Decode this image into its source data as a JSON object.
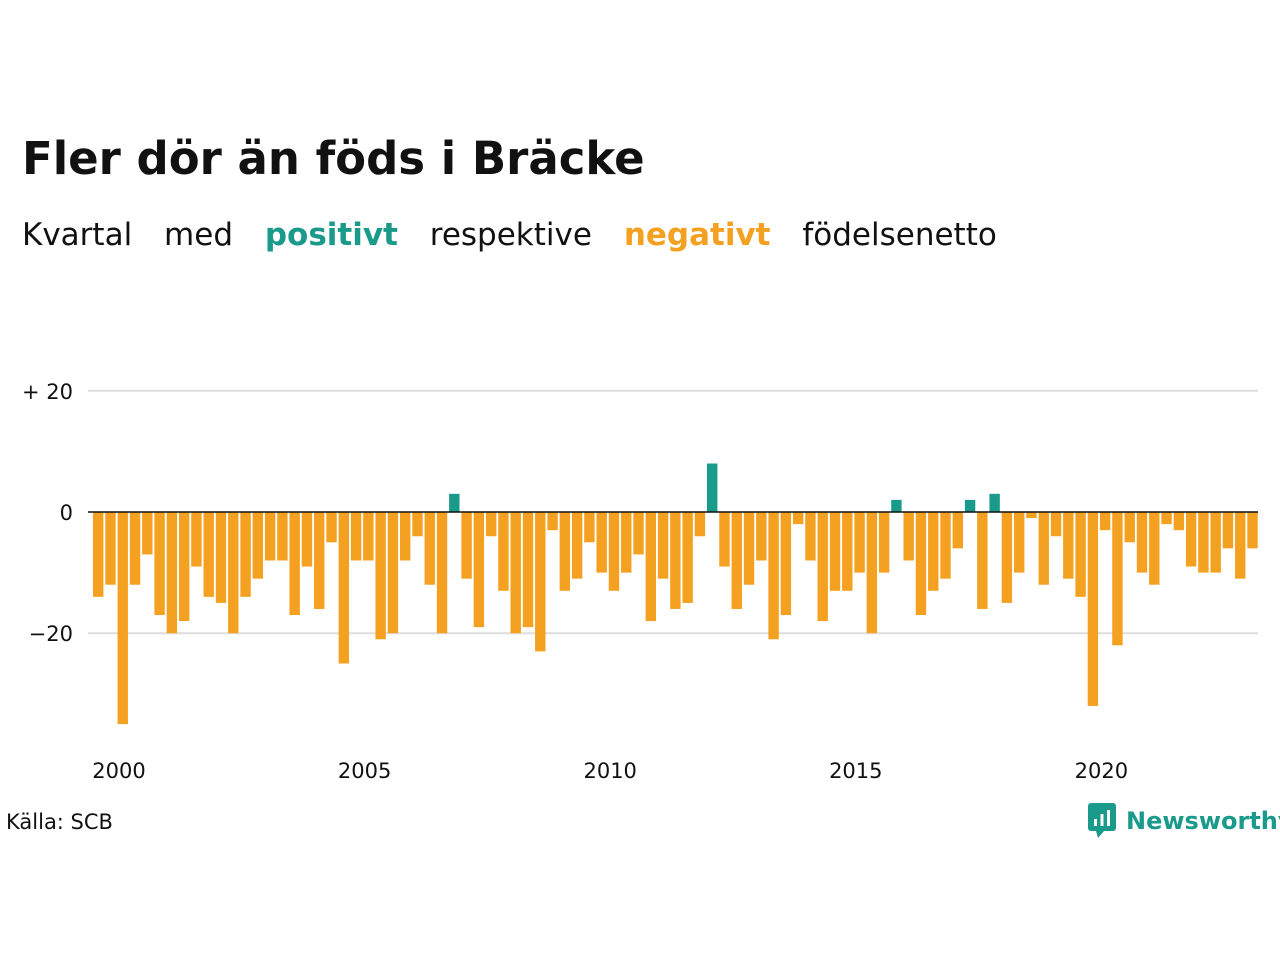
{
  "title": "Fler dör än föds i Bräcke",
  "subtitle": {
    "part1": "Kvartal",
    "part2": "med",
    "positive_word": "positivt",
    "part3": "respektive",
    "negative_word": "negativt",
    "part4": "födelsenetto"
  },
  "colors": {
    "positive": "#1a9a8a",
    "negative": "#f4a020",
    "grid": "#dddddd",
    "axis": "#111111"
  },
  "source": "Källa: SCB",
  "brand": {
    "name": "Newsworthy",
    "icon": "bar-chart-speech-bubble-icon"
  },
  "chart_data": {
    "type": "bar",
    "title": "Fler dör än föds i Bräcke",
    "subtitle": "Kvartal med positivt respektive negativt födelsenetto",
    "xlabel": "",
    "ylabel": "",
    "grid": true,
    "legend": "none",
    "x_start": 2000,
    "periods_per_year": 4,
    "ylim": [
      -38,
      24
    ],
    "y_ticks": [
      {
        "value": 20,
        "label": "+ 20"
      },
      {
        "value": 0,
        "label": "0"
      },
      {
        "value": -20,
        "label": "−20"
      }
    ],
    "x_ticks": [
      {
        "value": 2000,
        "label": "2000"
      },
      {
        "value": 2005,
        "label": "2005"
      },
      {
        "value": 2010,
        "label": "2010"
      },
      {
        "value": 2015,
        "label": "2015"
      },
      {
        "value": 2020,
        "label": "2020"
      }
    ],
    "values": [
      -14,
      -12,
      -35,
      -12,
      -7,
      -17,
      -20,
      -18,
      -9,
      -14,
      -15,
      -20,
      -14,
      -11,
      -8,
      -8,
      -17,
      -9,
      -16,
      -5,
      -25,
      -8,
      -8,
      -21,
      -20,
      -8,
      -4,
      -12,
      -20,
      3,
      -11,
      -19,
      -4,
      -13,
      -20,
      -19,
      -23,
      -3,
      -13,
      -11,
      -5,
      -10,
      -13,
      -10,
      -7,
      -18,
      -11,
      -16,
      -15,
      -4,
      8,
      -9,
      -16,
      -12,
      -8,
      -21,
      -17,
      -2,
      -8,
      -18,
      -13,
      -13,
      -10,
      -20,
      -10,
      2,
      -8,
      -17,
      -13,
      -11,
      -6,
      2,
      -16,
      3,
      -15,
      -10,
      -1,
      -12,
      -4,
      -11,
      -14,
      -32,
      -3,
      -22,
      -5,
      -10,
      -12,
      -2,
      -3,
      -9,
      -10,
      -10,
      -6,
      -11,
      -6
    ]
  }
}
